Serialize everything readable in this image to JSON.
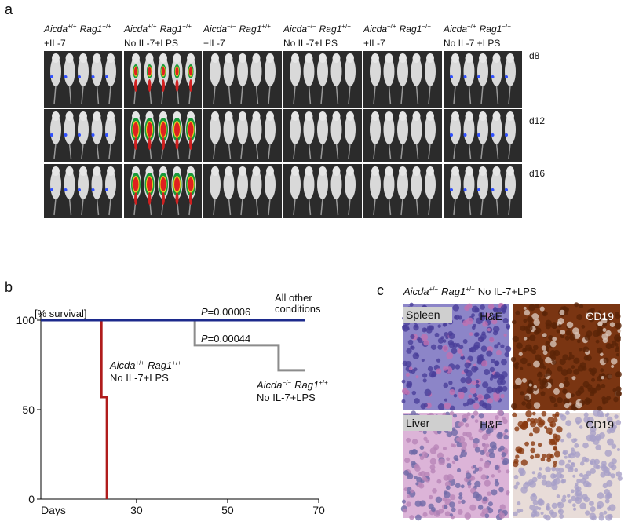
{
  "panel_a": {
    "letter": "a",
    "columns": [
      {
        "gene1": "Aicda",
        "sup1": "+/+",
        "gene2": "Rag1",
        "sup2": "+/+",
        "treatment": "+IL-7"
      },
      {
        "gene1": "Aicda",
        "sup1": "+/+",
        "gene2": "Rag1",
        "sup2": "+/+",
        "treatment": "No IL-7+LPS"
      },
      {
        "gene1": "Aicda",
        "sup1": "−/−",
        "gene2": "Rag1",
        "sup2": "+/+",
        "treatment": "+IL-7"
      },
      {
        "gene1": "Aicda",
        "sup1": "−/−",
        "gene2": "Rag1",
        "sup2": "+/+",
        "treatment": "No IL-7+LPS"
      },
      {
        "gene1": "Aicda",
        "sup1": "+/+",
        "gene2": "Rag1",
        "sup2": "−/−",
        "treatment": "+IL-7"
      },
      {
        "gene1": "Aicda",
        "sup1": "+/+",
        "gene2": "Rag1",
        "sup2": "−/−",
        "treatment": "No IL-7 +LPS"
      }
    ],
    "rows": [
      "d8",
      "d12",
      "d16"
    ]
  },
  "chart_data": {
    "type": "line",
    "letter": "b",
    "ylabel": "[% survival]",
    "xlabel": "Days",
    "xlim": [
      9,
      70
    ],
    "xticks": [
      30,
      50,
      70
    ],
    "ylim": [
      0,
      100
    ],
    "yticks": [
      0,
      50,
      100
    ],
    "series": [
      {
        "label": {
          "gene1": "Aicda",
          "sup1": "−/−",
          "gene2": "Rag1",
          "sup2": "+/+",
          "treatment": "No IL-7+LPS"
        },
        "color": "#8c8c8c",
        "x": [
          9,
          42.8,
          42.8,
          61.2,
          61.2,
          67
        ],
        "values": [
          100,
          100,
          86,
          86,
          72,
          72
        ]
      },
      {
        "label": {
          "gene1": "Aicda",
          "sup1": "+/+",
          "gene2": "Rag1",
          "sup2": "+/+",
          "treatment": "No IL-7+LPS"
        },
        "color": "#b01c1c",
        "x": [
          9,
          22.3,
          22.3,
          23.5,
          23.5
        ],
        "values": [
          100,
          100,
          57,
          57,
          0
        ]
      },
      {
        "name_lines": [
          "All other",
          "conditions"
        ],
        "color": "#1c2a8c",
        "x": [
          9,
          67
        ],
        "values": [
          100,
          100
        ]
      }
    ],
    "annotations": [
      {
        "symbol": "P",
        "text": "=0.00006"
      },
      {
        "symbol": "P",
        "text": "=0.00044"
      }
    ]
  },
  "panel_c": {
    "letter": "c",
    "title": {
      "gene1": "Aicda",
      "sup1": "+/+",
      "gene2": "Rag1",
      "sup2": "+/+",
      "treatment": "No IL-7+LPS"
    },
    "rows": [
      {
        "tissue": "Spleen",
        "stains": [
          "H&E",
          "CD19"
        ]
      },
      {
        "tissue": "Liver",
        "stains": [
          "H&E",
          "CD19"
        ]
      }
    ]
  }
}
